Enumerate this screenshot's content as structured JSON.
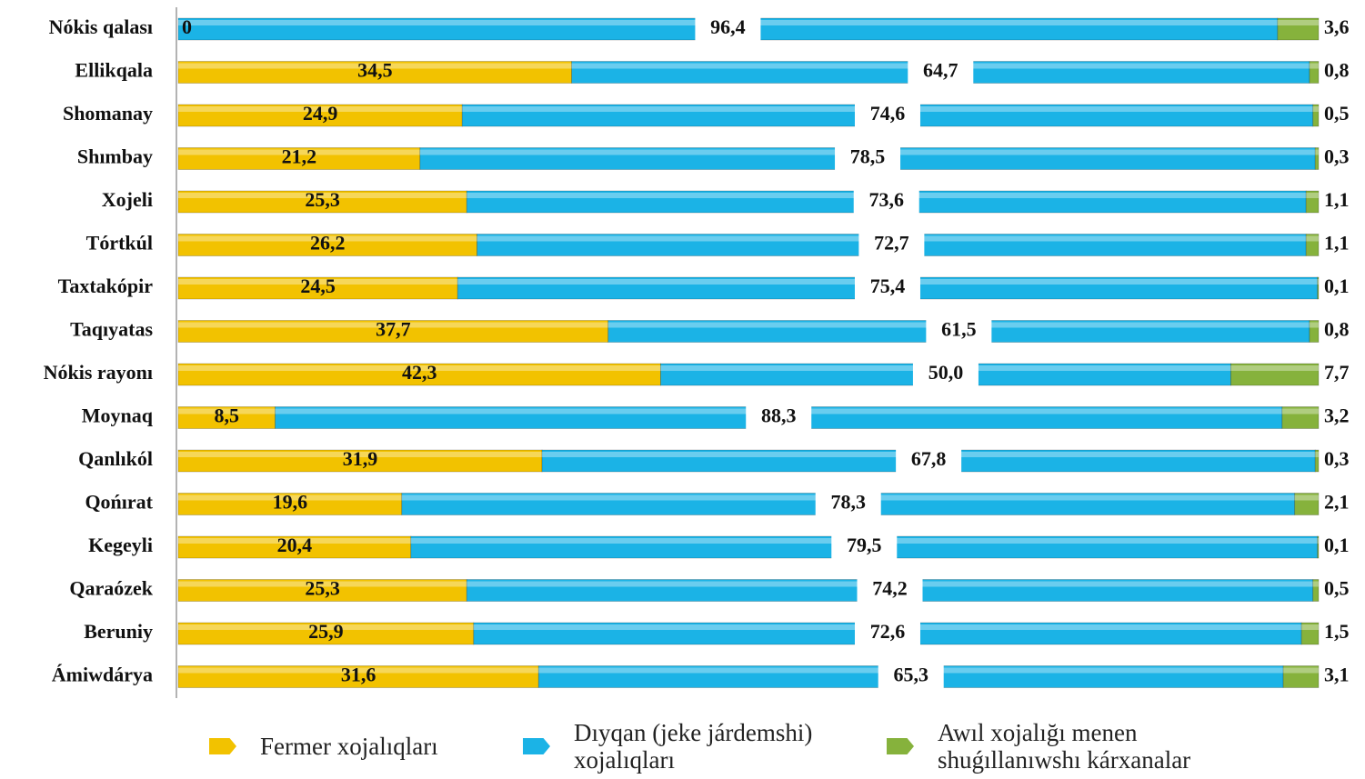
{
  "chart_data": {
    "type": "stacked-barh",
    "categories": [
      "Nókis qalası",
      "Ellikqala",
      "Shomanay",
      "Shımbay",
      "Xojeli",
      "Tórtkúl",
      "Taxtakópir",
      "Taqıyatas",
      "Nókis rayonı",
      "Moynaq",
      "Qanlıkól",
      "Qońırat",
      "Kegeyli",
      "Qaraózek",
      "Beruniy",
      "Ámiwdárya"
    ],
    "xlim": [
      0,
      100
    ],
    "series": [
      {
        "name": "Fermer xojalıqları",
        "color": "#f2c200",
        "values": [
          0,
          34.5,
          24.9,
          21.2,
          25.3,
          26.2,
          24.5,
          37.7,
          42.3,
          8.5,
          31.9,
          19.6,
          20.4,
          25.3,
          25.9,
          31.6
        ],
        "value_labels": [
          "0",
          "34,5",
          "24,9",
          "21,2",
          "25,3",
          "26,2",
          "24,5",
          "37,7",
          "42,3",
          "8,5",
          "31,9",
          "19,6",
          "20,4",
          "25,3",
          "25,9",
          "31,6"
        ]
      },
      {
        "name": "Dıyqan (jeke járdemshi) xojalıqları",
        "color": "#1bb3e6",
        "values": [
          96.4,
          64.7,
          74.6,
          78.5,
          73.6,
          72.7,
          75.4,
          61.5,
          50.0,
          88.3,
          67.8,
          78.3,
          79.5,
          74.2,
          72.6,
          65.3
        ],
        "value_labels": [
          "96,4",
          "64,7",
          "74,6",
          "78,5",
          "73,6",
          "72,7",
          "75,4",
          "61,5",
          "50,0",
          "88,3",
          "67,8",
          "78,3",
          "79,5",
          "74,2",
          "72,6",
          "65,3"
        ]
      },
      {
        "name": "Awıl xojalığı menen shuǵıllanıwshı kárxanalar",
        "color": "#86b23c",
        "values": [
          3.6,
          0.8,
          0.5,
          0.3,
          1.1,
          1.1,
          0.1,
          0.8,
          7.7,
          3.2,
          0.3,
          2.1,
          0.1,
          0.5,
          1.5,
          3.1
        ],
        "value_labels": [
          "3,6",
          "0,8",
          "0,5",
          "0,3",
          "1,1",
          "1,1",
          "0,1",
          "0,8",
          "7,7",
          "3,2",
          "0,3",
          "2,1",
          "0,1",
          "0,5",
          "1,5",
          "3,1"
        ]
      }
    ]
  }
}
